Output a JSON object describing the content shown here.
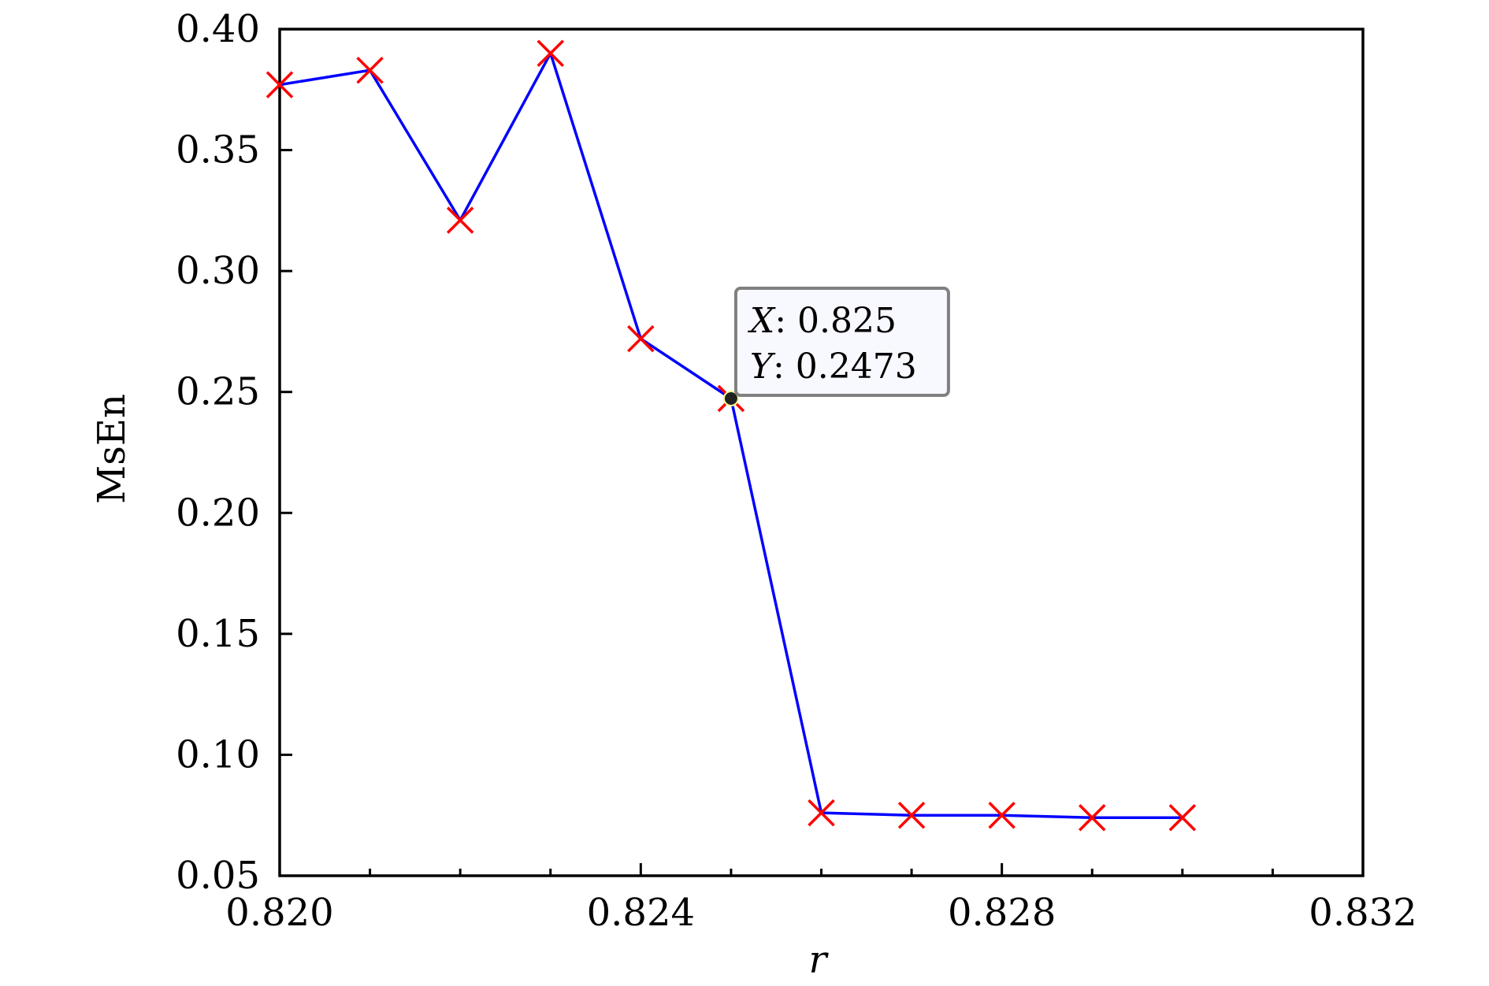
{
  "chart_data": {
    "type": "line",
    "title": "",
    "xlabel": "r",
    "ylabel": "MsEn",
    "xlim": [
      0.82,
      0.832
    ],
    "ylim": [
      0.05,
      0.4
    ],
    "xticks": [
      "0.820",
      "0.824",
      "0.828",
      "0.832"
    ],
    "yticks": [
      "0.05",
      "0.10",
      "0.15",
      "0.20",
      "0.25",
      "0.30",
      "0.35",
      "0.40"
    ],
    "grid": false,
    "series": [
      {
        "line_color": "#0000ff",
        "marker": "x",
        "marker_color": "#ff0000",
        "points": [
          {
            "x": 0.82,
            "y": 0.377
          },
          {
            "x": 0.821,
            "y": 0.383
          },
          {
            "x": 0.822,
            "y": 0.321
          },
          {
            "x": 0.823,
            "y": 0.39
          },
          {
            "x": 0.824,
            "y": 0.272
          },
          {
            "x": 0.825,
            "y": 0.2473
          },
          {
            "x": 0.826,
            "y": 0.076
          },
          {
            "x": 0.827,
            "y": 0.075
          },
          {
            "x": 0.828,
            "y": 0.075
          },
          {
            "x": 0.829,
            "y": 0.074
          },
          {
            "x": 0.83,
            "y": 0.074
          }
        ]
      }
    ],
    "datatip": {
      "x": 0.825,
      "y": 0.2473,
      "x_prefix": "X",
      "y_prefix": "Y",
      "x_text": "0.825",
      "y_text": "0.2473"
    }
  }
}
